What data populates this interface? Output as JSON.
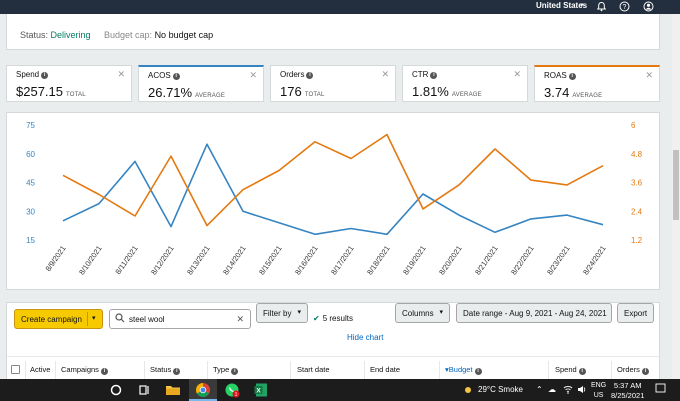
{
  "topbar": {
    "country": "United States",
    "bell_icon": "bell-icon",
    "help_icon": "help-icon",
    "account_icon": "account-icon"
  },
  "status": {
    "status_label": "Status:",
    "status_value": "Delivering",
    "budget_label": "Budget cap:",
    "budget_value": "No budget cap"
  },
  "metrics": [
    {
      "label": "Spend",
      "value": "$257.15",
      "sub": "TOTAL"
    },
    {
      "label": "ACOS",
      "value": "26.71%",
      "sub": "AVERAGE"
    },
    {
      "label": "Orders",
      "value": "176",
      "sub": "TOTAL"
    },
    {
      "label": "CTR",
      "value": "1.81%",
      "sub": "AVERAGE"
    },
    {
      "label": "ROAS",
      "value": "3.74",
      "sub": "AVERAGE"
    }
  ],
  "chart_data": {
    "type": "line",
    "categories": [
      "8/9/2021",
      "8/10/2021",
      "8/11/2021",
      "8/12/2021",
      "8/13/2021",
      "8/14/2021",
      "8/15/2021",
      "8/16/2021",
      "8/17/2021",
      "8/18/2021",
      "8/19/2021",
      "8/20/2021",
      "8/21/2021",
      "8/22/2021",
      "8/23/2021",
      "8/24/2021"
    ],
    "y_left": {
      "ticks": [
        "75",
        "60",
        "45",
        "30",
        "15"
      ],
      "min": 15,
      "max": 75,
      "color": "#3584c1"
    },
    "y_right": {
      "ticks": [
        "6",
        "4.8",
        "3.6",
        "2.4",
        "1.2"
      ],
      "min": 1.2,
      "max": 6,
      "color": "#e47911"
    },
    "series": [
      {
        "axis": "left",
        "color": "#3584c1",
        "values": [
          25,
          34,
          56,
          22,
          65,
          30,
          24,
          18,
          21,
          18,
          39,
          28,
          19,
          26,
          28,
          23
        ]
      },
      {
        "axis": "right",
        "color": "#e47911",
        "values": [
          3.9,
          3.1,
          2.2,
          4.7,
          1.8,
          3.3,
          4.1,
          5.3,
          4.6,
          5.6,
          2.5,
          3.5,
          5.0,
          3.7,
          3.5,
          4.3
        ]
      }
    ],
    "grid": false
  },
  "toolbar": {
    "create_label": "Create campaign",
    "search_value": "steel wool",
    "filter_label": "Filter by",
    "results": "5 results",
    "hide_chart": "Hide chart",
    "columns_label": "Columns",
    "date_range": "Date range - Aug 9, 2021 - Aug 24, 2021",
    "export_label": "Export"
  },
  "table": {
    "headers": [
      "Active",
      "Campaigns",
      "Status",
      "Type",
      "Start date",
      "End date",
      "Budget",
      "Spend",
      "Orders"
    ]
  },
  "taskbar": {
    "weather": "29°C  Smoke",
    "lang_line1": "ENG",
    "lang_line2": "US",
    "time": "5:37 AM",
    "date": "8/25/2021",
    "badge": "1"
  }
}
